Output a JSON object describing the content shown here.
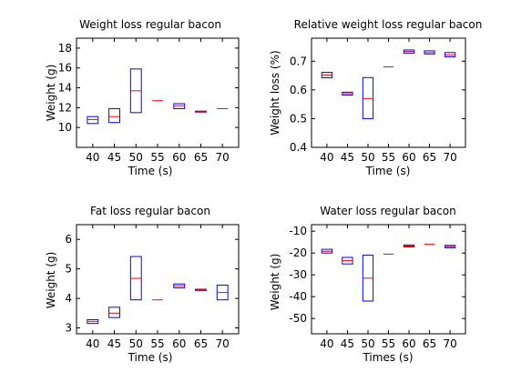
{
  "chart_data": [
    {
      "type": "box",
      "title": "Weight loss regular bacon",
      "xlabel": "Time (s)",
      "ylabel": "Weight (g)",
      "categories": [
        "40",
        "45",
        "50",
        "55",
        "60",
        "65",
        "70"
      ],
      "ylim": [
        8,
        19
      ],
      "yticks": [
        10,
        12,
        14,
        16,
        18
      ],
      "boxes": [
        {
          "q1": 10.4,
          "median": 10.8,
          "q3": 11.1
        },
        {
          "q1": 10.5,
          "median": 11.1,
          "q3": 11.9
        },
        {
          "q1": 11.5,
          "median": 13.7,
          "q3": 15.9
        },
        {
          "q1": 12.7,
          "median": 12.7,
          "q3": 12.7
        },
        {
          "q1": 11.9,
          "median": 12.2,
          "q3": 12.4
        },
        {
          "q1": 11.55,
          "median": 11.6,
          "q3": 11.65
        },
        {
          "q1": 11.9,
          "median": 11.9,
          "q3": 11.9
        }
      ]
    },
    {
      "type": "box",
      "title": "Relative weight loss regular bacon",
      "xlabel": "Time (s)",
      "ylabel": "Weight loss (%)",
      "categories": [
        "40",
        "45",
        "50",
        "55",
        "60",
        "65",
        "70"
      ],
      "ylim": [
        0.4,
        0.78
      ],
      "yticks": [
        0.4,
        0.5,
        0.6,
        0.7
      ],
      "boxes": [
        {
          "q1": 0.642,
          "median": 0.652,
          "q3": 0.661
        },
        {
          "q1": 0.582,
          "median": 0.587,
          "q3": 0.592
        },
        {
          "q1": 0.5,
          "median": 0.57,
          "q3": 0.643
        },
        {
          "q1": 0.68,
          "median": 0.68,
          "q3": 0.68
        },
        {
          "q1": 0.728,
          "median": 0.734,
          "q3": 0.739
        },
        {
          "q1": 0.725,
          "median": 0.73,
          "q3": 0.736
        },
        {
          "q1": 0.715,
          "median": 0.722,
          "q3": 0.73
        }
      ]
    },
    {
      "type": "box",
      "title": "Fat loss regular bacon",
      "xlabel": "Time (s)",
      "ylabel": "Weight (g)",
      "categories": [
        "40",
        "45",
        "50",
        "55",
        "60",
        "65",
        "70"
      ],
      "ylim": [
        2.8,
        6.5
      ],
      "yticks": [
        3,
        4,
        5,
        6
      ],
      "boxes": [
        {
          "q1": 3.15,
          "median": 3.22,
          "q3": 3.28
        },
        {
          "q1": 3.35,
          "median": 3.5,
          "q3": 3.7
        },
        {
          "q1": 3.95,
          "median": 4.68,
          "q3": 5.42
        },
        {
          "q1": 3.95,
          "median": 3.95,
          "q3": 3.95
        },
        {
          "q1": 4.36,
          "median": 4.43,
          "q3": 4.49
        },
        {
          "q1": 4.27,
          "median": 4.29,
          "q3": 4.31
        },
        {
          "q1": 3.95,
          "median": 4.2,
          "q3": 4.45
        }
      ]
    },
    {
      "type": "box",
      "title": "Water loss regular bacon",
      "xlabel": "Times (s)",
      "ylabel": "Weight (g)",
      "categories": [
        "40",
        "45",
        "50",
        "55",
        "60",
        "65",
        "70"
      ],
      "ylim": [
        -57,
        -7
      ],
      "yticks": [
        -50,
        -40,
        -30,
        -20,
        -10
      ],
      "boxes": [
        {
          "q1": -20.0,
          "median": -19.2,
          "q3": -18.3
        },
        {
          "q1": -25.0,
          "median": -23.5,
          "q3": -22.0
        },
        {
          "q1": -42.0,
          "median": -31.5,
          "q3": -21.0
        },
        {
          "q1": -20.5,
          "median": -20.5,
          "q3": -20.5
        },
        {
          "q1": -17.2,
          "median": -16.8,
          "q3": -16.3
        },
        {
          "q1": -16.0,
          "median": -16.0,
          "q3": -16.0
        },
        {
          "q1": -17.6,
          "median": -17.0,
          "q3": -16.5
        }
      ]
    }
  ]
}
